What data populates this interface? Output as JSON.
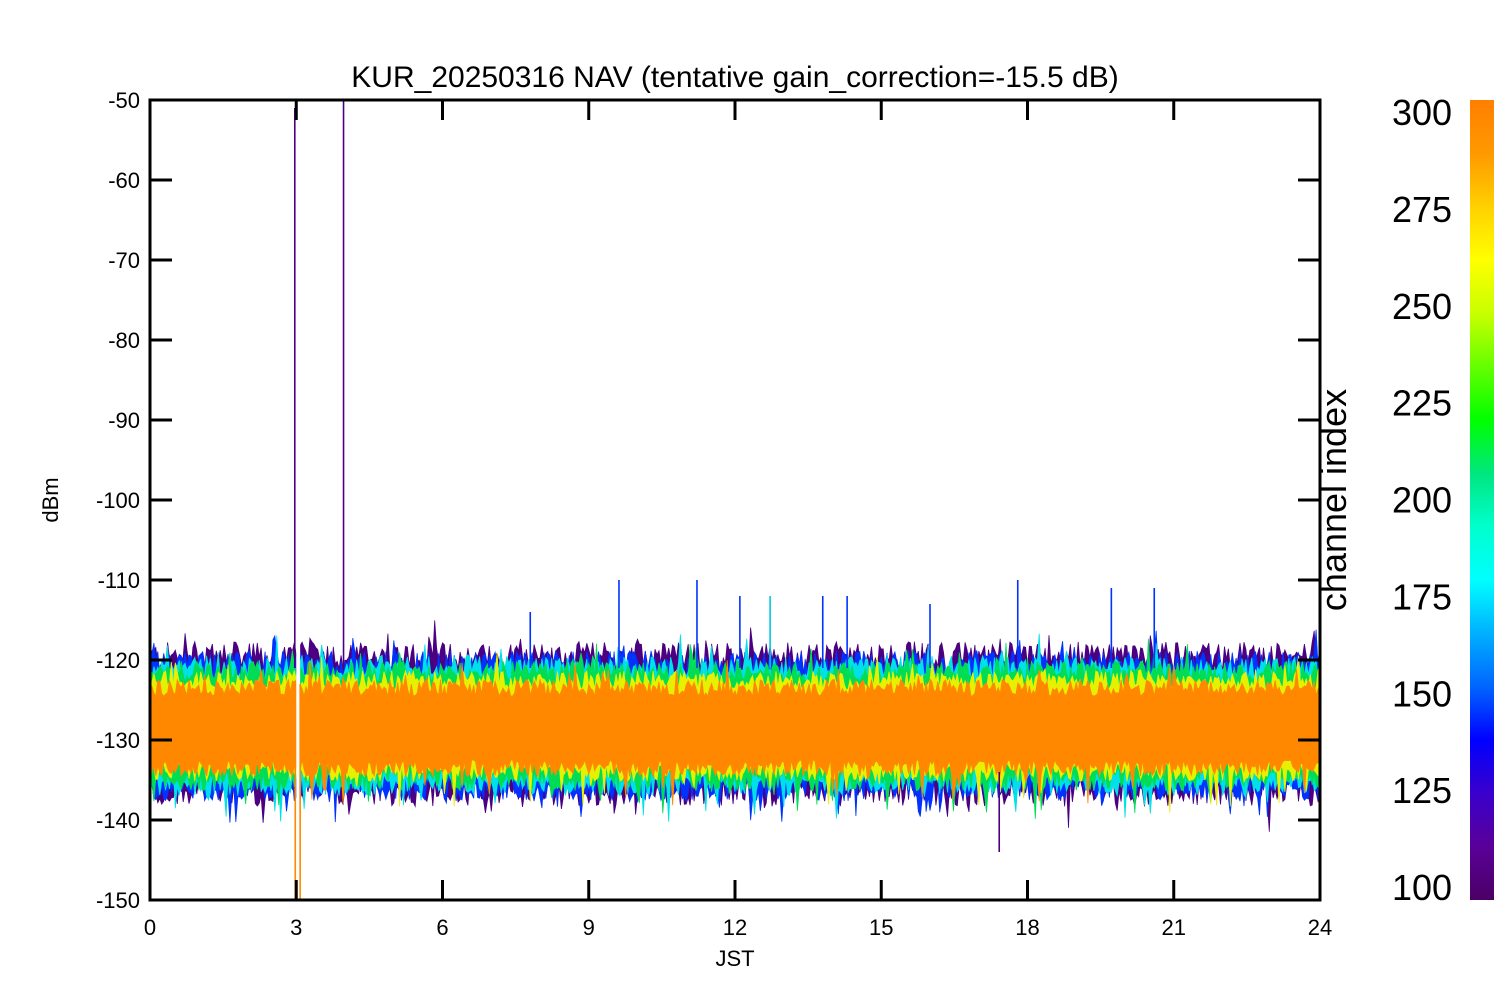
{
  "chart_data": {
    "type": "line",
    "title": "KUR_20250316 NAV (tentative gain_correction=-15.5 dB)",
    "xlabel": "JST",
    "ylabel": "dBm",
    "xlim": [
      0,
      24
    ],
    "ylim": [
      -150,
      -50
    ],
    "x_ticks": [
      "0",
      "3",
      "6",
      "9",
      "12",
      "15",
      "18",
      "21",
      "24"
    ],
    "y_ticks": [
      "-50",
      "-60",
      "-70",
      "-80",
      "-90",
      "-100",
      "-110",
      "-120",
      "-130",
      "-140",
      "-150"
    ],
    "y_tick_values": [
      -50,
      -60,
      -70,
      -80,
      -90,
      -100,
      -110,
      -120,
      -130,
      -140,
      -150
    ],
    "x_tick_values": [
      0,
      3,
      6,
      9,
      12,
      15,
      18,
      21,
      24
    ],
    "series_bands": [
      {
        "channel": 110,
        "color": "#4b0082",
        "upper_dBm": -119.5,
        "lower_dBm": -136.5
      },
      {
        "channel": 140,
        "color": "#0033ff",
        "upper_dBm": -120.5,
        "lower_dBm": -136.0
      },
      {
        "channel": 170,
        "color": "#00e0e8",
        "upper_dBm": -121.0,
        "lower_dBm": -135.5
      },
      {
        "channel": 215,
        "color": "#00dd55",
        "upper_dBm": -121.5,
        "lower_dBm": -135.0
      },
      {
        "channel": 265,
        "color": "#e6f000",
        "upper_dBm": -122.5,
        "lower_dBm": -134.0
      },
      {
        "channel": 300,
        "color": "#ff8800",
        "upper_dBm": -123.5,
        "lower_dBm": -133.5
      }
    ],
    "band_center_dBm": -128.5,
    "spikes": [
      {
        "x": 2.97,
        "top": -51,
        "bottom": -121,
        "color": "#4b0082"
      },
      {
        "x": 3.97,
        "top": -50,
        "bottom": -121,
        "color": "#4b0082"
      },
      {
        "x": 2.98,
        "top": -123,
        "bottom": -150,
        "color": "#ff8800"
      },
      {
        "x": 3.08,
        "top": -123,
        "bottom": -150,
        "color": "#ff8800"
      },
      {
        "x": 7.8,
        "top": -114,
        "bottom": -121,
        "color": "#0033ff"
      },
      {
        "x": 9.62,
        "top": -110,
        "bottom": -121,
        "color": "#0033ff"
      },
      {
        "x": 11.22,
        "top": -110,
        "bottom": -121,
        "color": "#0033ff"
      },
      {
        "x": 12.1,
        "top": -112,
        "bottom": -121,
        "color": "#0033ff"
      },
      {
        "x": 12.72,
        "top": -112,
        "bottom": -121,
        "color": "#00c8e8"
      },
      {
        "x": 13.8,
        "top": -112,
        "bottom": -121,
        "color": "#0033ff"
      },
      {
        "x": 14.3,
        "top": -112,
        "bottom": -121,
        "color": "#0033ff"
      },
      {
        "x": 16.0,
        "top": -113,
        "bottom": -121,
        "color": "#0033ff"
      },
      {
        "x": 17.8,
        "top": -110,
        "bottom": -121,
        "color": "#0033ff"
      },
      {
        "x": 19.72,
        "top": -111,
        "bottom": -121,
        "color": "#0033ff"
      },
      {
        "x": 20.6,
        "top": -111,
        "bottom": -121,
        "color": "#0033ff"
      },
      {
        "x": 17.42,
        "top": -134,
        "bottom": -144,
        "color": "#4b0082"
      }
    ],
    "gap_x": [
      3.0,
      3.08
    ],
    "colorbar": {
      "label": "channel index",
      "range": [
        100,
        300
      ],
      "ticks": [
        "300",
        "275",
        "250",
        "225",
        "200",
        "175",
        "150",
        "125",
        "100"
      ],
      "tick_values": [
        300,
        275,
        250,
        225,
        200,
        175,
        150,
        125,
        100
      ],
      "colors": [
        "#ff7f00",
        "#ff9900",
        "#ffd000",
        "#ffff00",
        "#c8ff00",
        "#66ff00",
        "#00ff00",
        "#00e680",
        "#00ffcc",
        "#00ffff",
        "#00b0ff",
        "#0066ff",
        "#0000ff",
        "#3a00cc",
        "#5a0099",
        "#4b0066"
      ]
    }
  }
}
